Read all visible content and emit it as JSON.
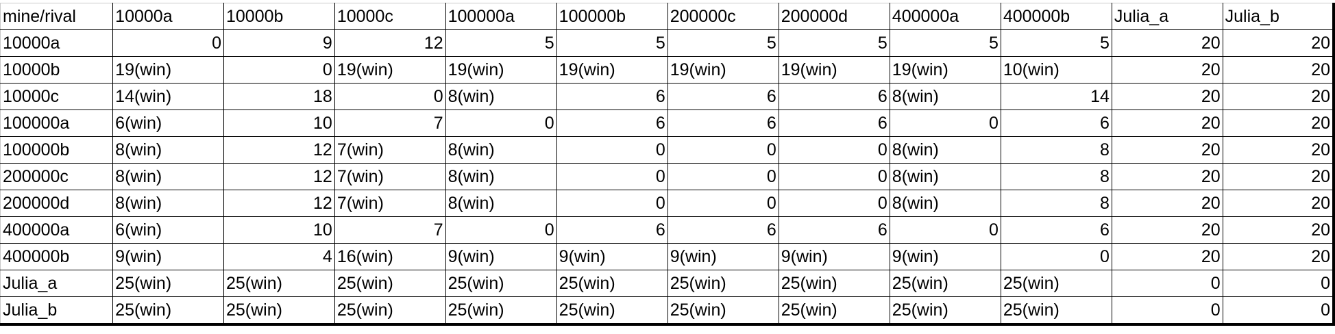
{
  "sheet": {
    "header": [
      "mine/rival",
      "10000a",
      "10000b",
      "10000c",
      "100000a",
      "100000b",
      "200000c",
      "200000d",
      "400000a",
      "400000b",
      "Julia_a",
      "Julia_b"
    ],
    "rows": [
      [
        "10000a",
        "0",
        "9",
        "12",
        "5",
        "5",
        "5",
        "5",
        "5",
        "5",
        "20",
        "20"
      ],
      [
        "10000b",
        "19(win)",
        "0",
        "19(win)",
        "19(win)",
        "19(win)",
        "19(win)",
        "19(win)",
        "19(win)",
        "10(win)",
        "20",
        "20"
      ],
      [
        "10000c",
        "14(win)",
        "18",
        "0",
        "8(win)",
        "6",
        "6",
        "6",
        "8(win)",
        "14",
        "20",
        "20"
      ],
      [
        "100000a",
        "6(win)",
        "10",
        "7",
        "0",
        "6",
        "6",
        "6",
        "0",
        "6",
        "20",
        "20"
      ],
      [
        "100000b",
        "8(win)",
        "12",
        "7(win)",
        "8(win)",
        "0",
        "0",
        "0",
        "8(win)",
        "8",
        "20",
        "20"
      ],
      [
        "200000c",
        "8(win)",
        "12",
        "7(win)",
        "8(win)",
        "0",
        "0",
        "0",
        "8(win)",
        "8",
        "20",
        "20"
      ],
      [
        "200000d",
        "8(win)",
        "12",
        "7(win)",
        "8(win)",
        "0",
        "0",
        "0",
        "8(win)",
        "8",
        "20",
        "20"
      ],
      [
        "400000a",
        "6(win)",
        "10",
        "7",
        "0",
        "6",
        "6",
        "6",
        "0",
        "6",
        "20",
        "20"
      ],
      [
        "400000b",
        "9(win)",
        "4",
        "16(win)",
        "9(win)",
        "9(win)",
        "9(win)",
        "9(win)",
        "9(win)",
        "0",
        "20",
        "20"
      ],
      [
        "Julia_a",
        "25(win)",
        "25(win)",
        "25(win)",
        "25(win)",
        "25(win)",
        "25(win)",
        "25(win)",
        "25(win)",
        "25(win)",
        "0",
        "0"
      ],
      [
        "Julia_b",
        "25(win)",
        "25(win)",
        "25(win)",
        "25(win)",
        "25(win)",
        "25(win)",
        "25(win)",
        "25(win)",
        "25(win)",
        "0",
        "0"
      ]
    ]
  }
}
